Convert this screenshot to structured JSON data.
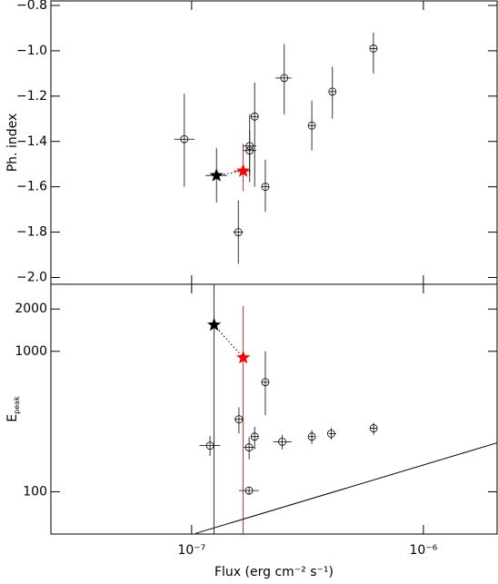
{
  "chart_data": [
    {
      "type": "scatter",
      "ylabel": "Ph. index",
      "log_x": true,
      "log_y": false,
      "xlim": [
        2.47e-08,
        2.08e-06
      ],
      "ylim": [
        -2.03,
        -0.78
      ],
      "yticks": [
        {
          "value": -0.8,
          "label": "−0.8"
        },
        {
          "value": -1.0,
          "label": "−1.0"
        },
        {
          "value": -1.2,
          "label": "−1.2"
        },
        {
          "value": -1.4,
          "label": "−1.4"
        },
        {
          "value": -1.6,
          "label": "−1.6"
        },
        {
          "value": -1.8,
          "label": "−1.8"
        },
        {
          "value": -2.0,
          "label": "−2.0"
        }
      ],
      "series": [
        {
          "marker": "circle",
          "color": "#000000",
          "x": [
            9.3e-08,
            1.59e-07,
            1.78e-07,
            1.78e-07,
            1.87e-07,
            2.08e-07,
            2.51e-07,
            3.3e-07,
            4.05e-07,
            6.09e-07
          ],
          "y": [
            -1.39,
            -1.8,
            -1.42,
            -1.44,
            -1.29,
            -1.6,
            -1.12,
            -1.33,
            -1.18,
            -0.99
          ],
          "y_lo": [
            -1.6,
            -1.94,
            -1.58,
            -1.55,
            -1.6,
            -1.71,
            -1.28,
            -1.44,
            -1.3,
            -1.1
          ],
          "y_hi": [
            -1.19,
            -1.66,
            -1.28,
            -1.35,
            -1.14,
            -1.48,
            -0.97,
            -1.22,
            -1.07,
            -0.92
          ],
          "x_lo": [
            8.4e-08,
            1.51e-07,
            1.66e-07,
            1.66e-07,
            1.8e-07,
            2e-07,
            2.3e-07,
            3.2e-07,
            3.9e-07,
            5.9e-07
          ],
          "x_hi": [
            1.03e-07,
            1.67e-07,
            1.9e-07,
            1.9e-07,
            1.95e-07,
            2.16e-07,
            2.7e-07,
            3.4e-07,
            4.2e-07,
            6.3e-07
          ]
        },
        {
          "marker": "star",
          "colors": [
            "#000000",
            "#ff0000"
          ],
          "err_colors": [
            "#000000",
            "#aa0000"
          ],
          "connect": "dotted",
          "x": [
            1.28e-07,
            1.67e-07
          ],
          "y": [
            -1.55,
            -1.53
          ],
          "y_lo": [
            -1.67,
            -1.62
          ],
          "y_hi": [
            -1.43,
            -1.41
          ],
          "x_lo": [
            1.15e-07,
            1.52e-07
          ],
          "x_hi": [
            1.42e-07,
            1.8e-07
          ]
        }
      ]
    },
    {
      "type": "scatter",
      "ylabel": "E",
      "ylabel_sub": "peak",
      "xlabel": "Flux (erg cm⁻² s⁻¹)",
      "log_x": true,
      "log_y": true,
      "xlim": [
        2.47e-08,
        2.08e-06
      ],
      "ylim": [
        50,
        3000
      ],
      "xticks": [
        {
          "value": 1e-07,
          "label": "10⁻⁷"
        },
        {
          "value": 1e-06,
          "label": "10⁻⁶"
        }
      ],
      "yticks": [
        100,
        1000,
        2000
      ],
      "series": [
        {
          "marker": "circle",
          "color": "#000000",
          "x": [
            1.2e-07,
            1.6e-07,
            1.77e-07,
            1.77e-07,
            1.87e-07,
            2.08e-07,
            2.46e-07,
            3.3e-07,
            4e-07,
            6.1e-07
          ],
          "y": [
            213,
            328,
            207,
            102,
            247,
            603,
            227,
            247,
            259,
            283
          ],
          "y_lo": [
            180,
            260,
            170,
            95,
            200,
            350,
            200,
            220,
            235,
            255
          ],
          "y_hi": [
            250,
            400,
            245,
            109,
            290,
            1000,
            255,
            275,
            285,
            310
          ],
          "x_lo": [
            1.08e-07,
            1.53e-07,
            1.68e-07,
            1.6e-07,
            1.8e-07,
            2e-07,
            2.25e-07,
            3.2e-07,
            3.9e-07,
            5.9e-07
          ],
          "x_hi": [
            1.33e-07,
            1.67e-07,
            1.86e-07,
            1.95e-07,
            1.95e-07,
            2.16e-07,
            2.7e-07,
            3.4e-07,
            4.2e-07,
            6.3e-07
          ]
        },
        {
          "marker": "star",
          "colors": [
            "#000000",
            "#ff0000"
          ],
          "err_colors": [
            "#000000",
            "#aa0000"
          ],
          "connect": "dotted",
          "x": [
            1.25e-07,
            1.67e-07
          ],
          "y": [
            1540,
            900
          ],
          "y_lo": [
            50,
            50
          ],
          "y_hi": [
            3000,
            2100
          ],
          "x_lo": [
            1.25e-07,
            1.67e-07
          ],
          "x_hi": [
            1.25e-07,
            1.67e-07
          ]
        }
      ],
      "lines": [
        {
          "color": "#000000",
          "x": [
            1.04e-07,
            2.08e-06
          ],
          "y": [
            50.5,
            223
          ]
        }
      ]
    }
  ]
}
